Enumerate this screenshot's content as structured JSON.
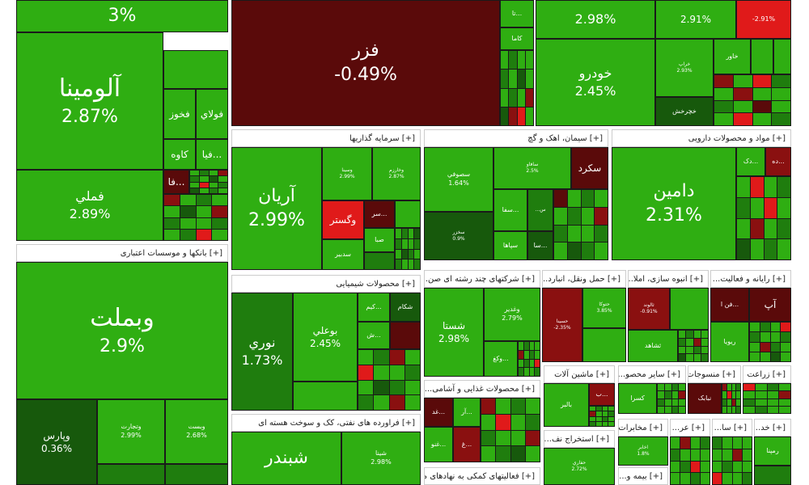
{
  "colors": {
    "green": "#2fae12",
    "dark_green": "#1f7d0e",
    "darker_green": "#17590c",
    "red": "#e01a1a",
    "dark_red": "#8a1010",
    "darkest_red": "#5a0a0a",
    "header_bg": "#ffffff"
  },
  "headers": {
    "banks": "[+] بانکها و موسسات اعتباری",
    "investment": "[+] سرمایه گذاریها",
    "cement": "[+] سیمان، اهک و گچ",
    "pharma": "[+] مواد و محصولات دارویی",
    "chemical": "[+] محصولات شیمیایی",
    "multi": "[+] شرکتهای چند رشته ای صن...",
    "transport": "[+] حمل ونقل، انبارد...",
    "mass": "[+] انبوه سازی، املا...",
    "computer": "[+] رایانه و فعالیت...",
    "oil": "[+] فراورده های نفتی، کک و سوخت هسته ای",
    "food": "[+] محصولات غذایی و آشامی...",
    "machinery": "[+] ماشین آلات",
    "other_mining": "[+] سایر محصو...",
    "textile": "[+] منسوجات",
    "agri": "[+] زراعت",
    "extraction": "[+] استخراج نف...",
    "telecom": "[+] مخابرات",
    "services": "[+] فعالیتهای کمکی به نهادهای م...",
    "insurance": "[+] بیمه و...",
    "misc1": "[+] عر...",
    "misc2": "[+] سا...",
    "misc3": "[+] خد..."
  },
  "tiles": {
    "top_left": {
      "pct": "3%"
    },
    "fezar": {
      "name": "فزر",
      "pct": "-0.49%"
    },
    "t298": {
      "pct": "2.98%"
    },
    "t291": {
      "pct": "2.91%"
    },
    "t291n": {
      "pct": "-2.91%"
    },
    "khodro": {
      "name": "خودرو",
      "pct": "2.45%"
    },
    "alumina": {
      "name": "آلومينا",
      "pct": "2.87%"
    },
    "femli": {
      "name": "فملي",
      "pct": "2.89%"
    },
    "fokhuz": {
      "name": "فخوز"
    },
    "folay": {
      "name": "فولاي"
    },
    "kaveh": {
      "name": "کاوه"
    },
    "fiya": {
      "name": "فيا..."
    },
    "fa": {
      "name": "فا..."
    },
    "kama": {
      "name": "کاما"
    },
    "ta": {
      "name": "تا..."
    },
    "khaver": {
      "name": "خاور"
    },
    "kherkesh": {
      "name": "خچرخش"
    },
    "kharpa": {
      "name": "خراپ",
      "pct": "2.93%"
    },
    "vabemellat": {
      "name": "وبملت",
      "pct": "2.9%"
    },
    "vaparas": {
      "name": "وپارس",
      "pct": "0.36%"
    },
    "vatejarat": {
      "name": "وتجارت",
      "pct": "2.99%"
    },
    "vabsat": {
      "name": "وبست",
      "pct": "2.68%"
    },
    "aryan": {
      "name": "آريان",
      "pct": "2.99%"
    },
    "vesina": {
      "name": "وسينا",
      "pct": "2.99%"
    },
    "vasarm": {
      "name": "وخارزم",
      "pct": "2.87%"
    },
    "vgostar": {
      "name": "وگستر"
    },
    "sar": {
      "name": "سر..."
    },
    "saba": {
      "name": "صبا"
    },
    "sadbir": {
      "name": "سدبير"
    },
    "sofi": {
      "name": "سصوفي",
      "pct": "1.64%"
    },
    "sakhaz": {
      "name": "سخزر",
      "pct": "0.9%"
    },
    "sasaver": {
      "name": "سافاو",
      "pct": "2.5%"
    },
    "sekord": {
      "name": "سکرد"
    },
    "s_dots": {
      "name": "...س"
    },
    "sefa": {
      "name": "سفا..."
    },
    "sapaha": {
      "name": "سپاها"
    },
    "sata": {
      "name": "سا..."
    },
    "damin": {
      "name": "دامين",
      "pct": "2.31%"
    },
    "dak": {
      "name": "دک..."
    },
    "deh": {
      "name": "ده..."
    },
    "nuri": {
      "name": "نوري",
      "pct": "1.73%"
    },
    "bualy": {
      "name": "بوعلي",
      "pct": "2.45%"
    },
    "kim": {
      "name": "کيم..."
    },
    "shakam": {
      "name": "شکام"
    },
    "sh": {
      "name": "ش..."
    },
    "shasta": {
      "name": "شستا",
      "pct": "2.98%"
    },
    "vadir": {
      "name": "وغدير",
      "pct": "2.79%"
    },
    "vakh": {
      "name": "وکغ..."
    },
    "hasina": {
      "name": "حسينا",
      "pct": "-2.35%"
    },
    "small1": {
      "name": "حتوکا",
      "pct": "3.85%"
    },
    "alrad": {
      "name": "ثالوند",
      "pct": "-0.91%"
    },
    "shahd": {
      "name": "ثشاهد"
    },
    "fan": {
      "name": "فن ا..."
    },
    "ap": {
      "name": "آپ"
    },
    "riva": {
      "name": "ريويا"
    },
    "shabandar": {
      "name": "شبندر"
    },
    "shina": {
      "name": "شينا",
      "pct": "2.98%"
    },
    "ghedas": {
      "name": "غد..."
    },
    "ar": {
      "name": "آر..."
    },
    "gh": {
      "name": "غ..."
    },
    "ghenoo": {
      "name": "غنو..."
    },
    "baler": {
      "name": "بالبر"
    },
    "b": {
      "name": "ب..."
    },
    "kesra": {
      "name": "کسرا"
    },
    "nabak": {
      "name": "نبابک"
    },
    "hafari": {
      "name": "حفاري",
      "pct": "2.72%"
    },
    "akhaber": {
      "name": "اخابر",
      "pct": "1.8%"
    },
    "rempena": {
      "name": "رمپنا"
    }
  }
}
